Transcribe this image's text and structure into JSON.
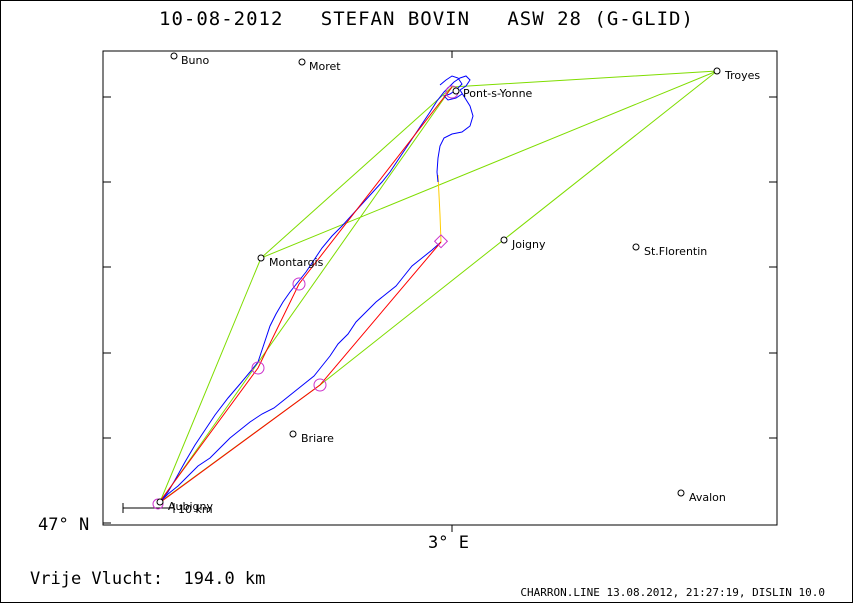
{
  "header": {
    "title": "10-08-2012   STEFAN BOVIN   ASW 28 (G-GLID)"
  },
  "map": {
    "lat_label": "47° N",
    "lon_label": "3° E",
    "scale_label": "10 km",
    "colors": {
      "track": "#0000ff",
      "task_line": "#ff0000",
      "flight_legs": "#7fdd00",
      "return_leg": "#ffcc00",
      "turnpoint": "#cc33cc"
    },
    "cities": [
      {
        "name": "Buno",
        "label": "Buno"
      },
      {
        "name": "Moret",
        "label": "Moret"
      },
      {
        "name": "Troyes",
        "label": "Troyes"
      },
      {
        "name": "Pont-s-Yonne",
        "label": "Pont-s-Yonne"
      },
      {
        "name": "Montargis",
        "label": "Montargis"
      },
      {
        "name": "Joigny",
        "label": "Joigny"
      },
      {
        "name": "St.Florentin",
        "label": "St.Florentin"
      },
      {
        "name": "Briare",
        "label": "Briare"
      },
      {
        "name": "Aubigny",
        "label": "Aubigny"
      },
      {
        "name": "Avalon",
        "label": "Avalon"
      }
    ]
  },
  "footer": {
    "distance_text": "Vrije Vlucht:  194.0 km",
    "credits": "CHARRON.LINE 13.08.2012, 21:27:19, DISLIN 10.0"
  }
}
